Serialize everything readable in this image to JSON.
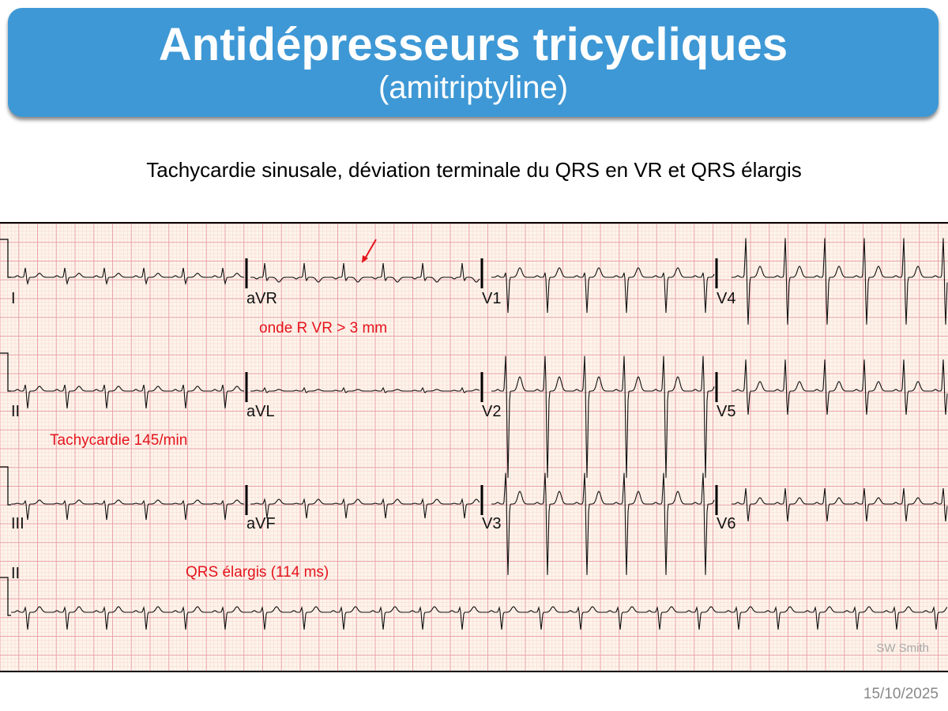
{
  "slide": {
    "title": "Antidépresseurs tricycliques",
    "subtitle": "(amitriptyline)",
    "caption": "Tachycardie sinusale, déviation terminale du QRS en VR et QRS élargis",
    "date": "15/10/2025"
  },
  "ecg": {
    "leads": [
      "I",
      "aVR",
      "V1",
      "V4",
      "II",
      "aVL",
      "V2",
      "V5",
      "III",
      "aVF",
      "V3",
      "V6",
      "II"
    ],
    "annotations": {
      "avr": "onde R VR > 3 mm",
      "rate": "Tachycardie 145/min",
      "qrs": "QRS élargis (114 ms)"
    },
    "heart_rate_bpm": 145,
    "qrs_ms": 114,
    "credit": "SW Smith",
    "colors": {
      "grid_major": "#eaa3ab",
      "grid_minor": "#f6d6d3",
      "paper": "#fdf4ea",
      "trace": "#111111",
      "annotation": "#e5141c",
      "banner": "#3e98d5"
    }
  }
}
